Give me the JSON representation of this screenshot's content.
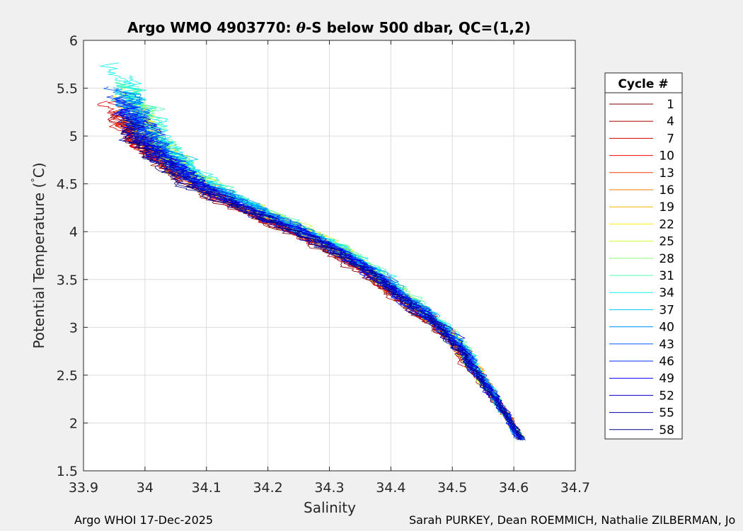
{
  "chart_data": {
    "type": "line",
    "title_main": "Argo WMO 4903770: ",
    "title_theta": "θ",
    "title_rest": "-S below 500 dbar,  QC=(1,2)",
    "xlabel": "Salinity",
    "ylabel_pre": "Potential Temperature (",
    "ylabel_deg": "°",
    "ylabel_post": "C)",
    "xlim": [
      33.9,
      34.7
    ],
    "ylim": [
      1.5,
      6
    ],
    "xticks": [
      33.9,
      34,
      34.1,
      34.2,
      34.3,
      34.4,
      34.5,
      34.6,
      34.7
    ],
    "xtick_labels": [
      "33.9",
      "34",
      "34.1",
      "34.2",
      "34.3",
      "34.4",
      "34.5",
      "34.6",
      "34.7"
    ],
    "yticks": [
      1.5,
      2,
      2.5,
      3,
      3.5,
      4,
      4.5,
      5,
      5.5,
      6
    ],
    "ytick_labels": [
      "1.5",
      "2",
      "2.5",
      "3",
      "3.5",
      "4",
      "4.5",
      "5",
      "5.5",
      "6"
    ],
    "grid": true,
    "legend_title": "Cycle #",
    "legend_position": "right-outside",
    "legend_entries": [
      "1",
      "4",
      "7",
      "10",
      "13",
      "16",
      "19",
      "22",
      "25",
      "28",
      "31",
      "34",
      "37",
      "40",
      "43",
      "46",
      "49",
      "52",
      "55",
      "58"
    ],
    "colors": [
      "#7f0000",
      "#a80000",
      "#d40000",
      "#ff0000",
      "#ff3c00",
      "#ff7a00",
      "#ffb800",
      "#fff000",
      "#cfff2f",
      "#8fff6f",
      "#4fffaf",
      "#10f0ef",
      "#00c4ff",
      "#0090ff",
      "#0060ff",
      "#002cff",
      "#0000ff",
      "#0000d0",
      "#0000a8",
      "#000080"
    ],
    "mean_curve": {
      "theta": [
        5.2,
        5.0,
        4.8,
        4.6,
        4.4,
        4.2,
        4.0,
        3.8,
        3.6,
        3.4,
        3.2,
        3.0,
        2.8,
        2.6,
        2.4,
        2.2,
        2.0,
        1.82
      ],
      "salinity": [
        33.97,
        33.99,
        34.02,
        34.06,
        34.11,
        34.18,
        34.25,
        34.31,
        34.36,
        34.4,
        34.44,
        34.48,
        34.51,
        34.53,
        34.555,
        34.575,
        34.595,
        34.612
      ]
    },
    "top_theta_by_cycle": [
      5.15,
      5.2,
      5.3,
      5.1,
      5.2,
      5.25,
      5.3,
      5.35,
      5.4,
      5.45,
      5.5,
      5.72,
      5.55,
      5.45,
      5.4,
      5.3,
      5.2,
      5.15,
      5.1,
      5.18
    ]
  },
  "footer": {
    "left": "Argo WHOI 17-Dec-2025",
    "right": "Sarah PURKEY, Dean ROEMMICH, Nathalie ZILBERMAN, Jo"
  }
}
